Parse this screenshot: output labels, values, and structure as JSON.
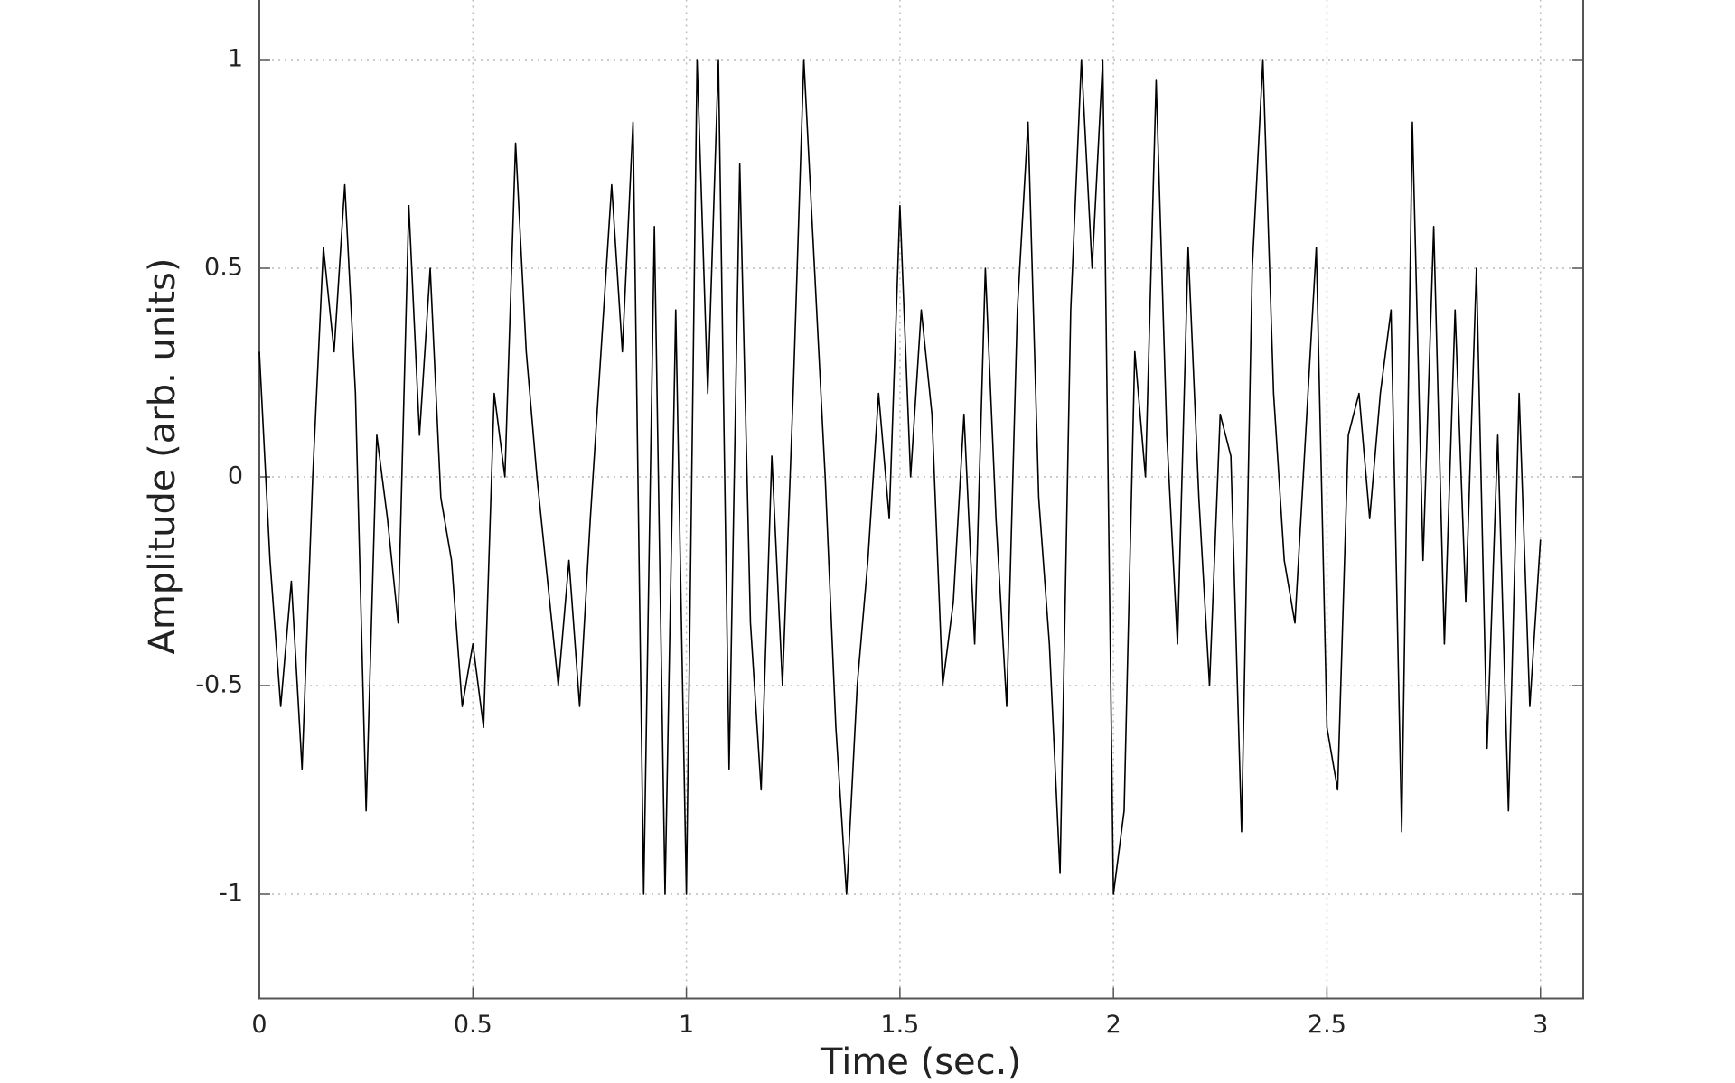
{
  "chart_data": {
    "type": "line",
    "xlabel": "Time (sec.)",
    "ylabel": "Amplitude (arb. units)",
    "x": [
      0,
      0.025,
      0.05,
      0.075,
      0.1,
      0.125,
      0.15,
      0.175,
      0.2,
      0.225,
      0.25,
      0.275,
      0.3,
      0.325,
      0.35,
      0.375,
      0.4,
      0.425,
      0.45,
      0.475,
      0.5,
      0.525,
      0.55,
      0.575,
      0.6,
      0.625,
      0.65,
      0.675,
      0.7,
      0.725,
      0.75,
      0.775,
      0.8,
      0.825,
      0.85,
      0.875,
      0.9,
      0.925,
      0.95,
      0.975,
      1,
      1.025,
      1.05,
      1.075,
      1.1,
      1.125,
      1.15,
      1.175,
      1.2,
      1.225,
      1.25,
      1.275,
      1.3,
      1.325,
      1.35,
      1.375,
      1.4,
      1.425,
      1.45,
      1.475,
      1.5,
      1.525,
      1.55,
      1.575,
      1.6,
      1.625,
      1.65,
      1.675,
      1.7,
      1.725,
      1.75,
      1.775,
      1.8,
      1.825,
      1.85,
      1.875,
      1.9,
      1.925,
      1.95,
      1.975,
      2,
      2.025,
      2.05,
      2.075,
      2.1,
      2.125,
      2.15,
      2.175,
      2.2,
      2.225,
      2.25,
      2.275,
      2.3,
      2.325,
      2.35,
      2.375,
      2.4,
      2.425,
      2.45,
      2.475,
      2.5,
      2.525,
      2.55,
      2.575,
      2.6,
      2.625,
      2.65,
      2.675,
      2.7,
      2.725,
      2.75,
      2.775,
      2.8,
      2.825,
      2.85,
      2.875,
      2.9,
      2.925,
      2.95,
      2.975,
      3
    ],
    "values": [
      0.3,
      -0.2,
      -0.55,
      -0.25,
      -0.7,
      0,
      0.55,
      0.3,
      0.7,
      0.2,
      -0.8,
      0.1,
      -0.1,
      -0.35,
      0.65,
      0.1,
      0.5,
      -0.05,
      -0.2,
      -0.55,
      -0.4,
      -0.6,
      0.2,
      0,
      0.8,
      0.3,
      0,
      -0.25,
      -0.5,
      -0.2,
      -0.55,
      -0.1,
      0.3,
      0.7,
      0.3,
      0.85,
      -1,
      0.6,
      -1,
      0.4,
      -1,
      1,
      0.2,
      1,
      -0.7,
      0.75,
      -0.35,
      -0.75,
      0.05,
      -0.5,
      0.2,
      1,
      0.5,
      0,
      -0.6,
      -1,
      -0.5,
      -0.2,
      0.2,
      -0.1,
      0.65,
      0,
      0.4,
      0.15,
      -0.5,
      -0.3,
      0.15,
      -0.4,
      0.5,
      -0.1,
      -0.55,
      0.4,
      0.85,
      -0.05,
      -0.4,
      -0.95,
      0.4,
      1,
      0.5,
      1,
      -1,
      -0.8,
      0.3,
      0,
      0.95,
      0.1,
      -0.4,
      0.55,
      -0.05,
      -0.5,
      0.15,
      0.05,
      -0.85,
      0.5,
      1,
      0.2,
      -0.2,
      -0.35,
      0.1,
      0.55,
      -0.6,
      -0.75,
      0.1,
      0.2,
      -0.1,
      0.2,
      0.4,
      -0.85,
      0.85,
      -0.2,
      0.6,
      -0.4,
      0.4,
      -0.3,
      0.5,
      -0.65,
      0.1,
      -0.8,
      0.2,
      -0.55,
      -0.15
    ],
    "color": "#000000",
    "xlim": [
      0,
      3.1
    ],
    "ylim": [
      -1.25,
      1.25
    ],
    "xticks": [
      0,
      0.5,
      1,
      1.5,
      2,
      2.5,
      3
    ],
    "yticks": [
      -1,
      -0.5,
      0,
      0.5,
      1
    ],
    "grid": true
  }
}
